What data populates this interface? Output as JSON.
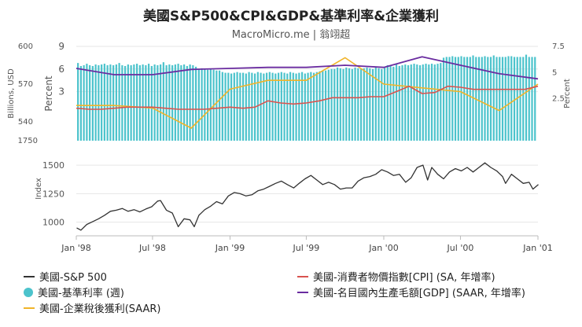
{
  "title": "美國S&P500&CPI&GDP&基準利率&企業獲利",
  "subtitle": "MacroMicro.me | 翁翊超",
  "colors": {
    "sp500": "#333333",
    "fed_rate": "#4cc3cc",
    "profit": "#f0b429",
    "cpi": "#d9534f",
    "gdp": "#6a2ca0",
    "grid": "#e6e6e6"
  },
  "legend": [
    {
      "key": "sp500",
      "label": "美國-S&P 500",
      "marker": "line"
    },
    {
      "key": "cpi",
      "label": "美國-消費者物價指數[CPI] (SA, 年增率)",
      "marker": "line"
    },
    {
      "key": "fed_rate",
      "label": "美國-基準利率 (週)",
      "marker": "dot"
    },
    {
      "key": "gdp",
      "label": "美國-名目國內生產毛額[GDP] (SAAR, 年增率)",
      "marker": "line"
    },
    {
      "key": "profit",
      "label": "美國-企業稅後獲利(SAAR)",
      "marker": "line"
    }
  ],
  "chart_data": [
    {
      "type": "bar+line",
      "panel": "top",
      "y_left_outer": {
        "label": "Billions, USD",
        "range": [
          525,
          600
        ],
        "ticks": [
          "600",
          "570",
          "540"
        ]
      },
      "y_left_inner": {
        "label": "Percent",
        "range": [
          -3.5,
          9
        ],
        "ticks": [
          "9",
          "6",
          "3"
        ],
        "bottom_label": "1750"
      },
      "y_right": {
        "label": "Percent",
        "range": [
          -1.5,
          7.5
        ],
        "ticks": [
          "7.5",
          "5",
          "2.5"
        ]
      },
      "series": [
        {
          "key": "fed_rate",
          "name": "美國-基準利率 (週)",
          "type": "bar",
          "x_start": "1998-01-05",
          "x_step_days": 7,
          "values": [
            6.8,
            6.4,
            6.5,
            6.7,
            6.5,
            6.4,
            6.6,
            6.5,
            6.6,
            6.7,
            6.5,
            6.6,
            6.5,
            6.6,
            6.8,
            6.5,
            6.4,
            6.6,
            6.5,
            6.6,
            6.7,
            6.5,
            6.6,
            6.5,
            6.7,
            6.4,
            6.6,
            6.5,
            6.6,
            6.9,
            6.5,
            6.6,
            6.5,
            6.6,
            6.7,
            6.5,
            6.6,
            6.4,
            6.6,
            6.5,
            6.3,
            6.0,
            6.1,
            6.0,
            5.9,
            6.0,
            5.9,
            5.8,
            5.8,
            5.6,
            5.5,
            5.5,
            5.4,
            5.5,
            5.6,
            5.5,
            5.5,
            5.4,
            5.6,
            5.5,
            5.4,
            5.6,
            5.5,
            5.4,
            5.5,
            5.6,
            5.5,
            5.4,
            5.5,
            5.6,
            5.5,
            5.4,
            5.6,
            5.5,
            5.4,
            5.5,
            5.6,
            5.4,
            5.5,
            5.6,
            5.5,
            5.6,
            5.7,
            5.8,
            5.8,
            5.9,
            6.0,
            6.0,
            6.2,
            6.1,
            6.0,
            6.2,
            6.1,
            6.0,
            6.2,
            6.1,
            6.0,
            6.1,
            6.2,
            6.1,
            6.0,
            6.2,
            6.1,
            6.0,
            6.2,
            6.5,
            6.4,
            6.3,
            6.6,
            6.4,
            6.5,
            6.6,
            6.5,
            6.6,
            6.7,
            6.6,
            6.5,
            6.6,
            6.7,
            6.6,
            6.7,
            6.6,
            6.7,
            6.8,
            7.5,
            7.6,
            7.6,
            7.7,
            7.6,
            7.6,
            7.7,
            7.6,
            7.6,
            7.6,
            7.8,
            7.6,
            7.6,
            7.6,
            7.7,
            7.6,
            7.6,
            7.8,
            7.6,
            7.6,
            7.6,
            7.6,
            7.7,
            7.7,
            7.6,
            7.6,
            7.6,
            7.6,
            7.9,
            7.6,
            7.6,
            7.6
          ]
        },
        {
          "key": "profit",
          "name": "美國-企業稅後獲利(SAAR)",
          "type": "line",
          "axis": "left_outer",
          "x": [
            "1998-01-01",
            "1998-04-01",
            "1998-07-01",
            "1998-10-01",
            "1999-01-01",
            "1999-04-01",
            "1999-07-01",
            "1999-10-01",
            "2000-01-01",
            "2000-04-01",
            "2000-07-01",
            "2000-10-01",
            "2001-01-01"
          ],
          "values": [
            553,
            553,
            551,
            535,
            566,
            573,
            573,
            591,
            570,
            567,
            564,
            549,
            570
          ]
        },
        {
          "key": "cpi",
          "name": "美國-消費者物價指數[CPI] (SA, 年增率)",
          "type": "line",
          "axis": "right",
          "x": [
            "1998-01-01",
            "1998-02-01",
            "1998-03-01",
            "1998-04-01",
            "1998-05-01",
            "1998-06-01",
            "1998-07-01",
            "1998-08-01",
            "1998-09-01",
            "1998-10-01",
            "1998-11-01",
            "1998-12-01",
            "1999-01-01",
            "1999-02-01",
            "1999-03-01",
            "1999-04-01",
            "1999-05-01",
            "1999-06-01",
            "1999-07-01",
            "1999-08-01",
            "1999-09-01",
            "1999-10-01",
            "1999-11-01",
            "1999-12-01",
            "2000-01-01",
            "2000-02-01",
            "2000-03-01",
            "2000-04-01",
            "2000-05-01",
            "2000-06-01",
            "2000-07-01",
            "2000-08-01",
            "2000-09-01",
            "2000-10-01",
            "2000-11-01",
            "2000-12-01",
            "2001-01-01"
          ],
          "values": [
            1.6,
            1.5,
            1.5,
            1.6,
            1.7,
            1.7,
            1.7,
            1.6,
            1.5,
            1.5,
            1.5,
            1.6,
            1.7,
            1.6,
            1.7,
            2.3,
            2.1,
            2.0,
            2.1,
            2.3,
            2.6,
            2.6,
            2.6,
            2.7,
            2.7,
            3.2,
            3.7,
            3.0,
            3.1,
            3.7,
            3.6,
            3.4,
            3.4,
            3.4,
            3.4,
            3.4,
            3.7
          ]
        },
        {
          "key": "gdp",
          "name": "美國-名目國內生產毛額[GDP] (SAAR, 年增率)",
          "type": "line",
          "axis": "right",
          "x": [
            "1998-01-01",
            "1998-04-01",
            "1998-07-01",
            "1998-10-01",
            "1999-01-01",
            "1999-04-01",
            "1999-07-01",
            "1999-10-01",
            "2000-01-01",
            "2000-04-01",
            "2000-07-01",
            "2000-10-01",
            "2001-01-01"
          ],
          "values": [
            5.4,
            4.8,
            4.8,
            5.3,
            5.4,
            5.5,
            5.5,
            5.7,
            5.5,
            6.5,
            5.7,
            4.9,
            4.4
          ]
        }
      ]
    },
    {
      "type": "line",
      "panel": "bottom",
      "y": {
        "label": "Index",
        "range": [
          880,
          1570
        ],
        "ticks": [
          "1500",
          "1250",
          "1000"
        ]
      },
      "x_ticks": [
        "Jan '98",
        "Jul '98",
        "Jan '99",
        "Jul '99",
        "Jan '00",
        "Jul '00",
        "Jan '01"
      ],
      "x_range": [
        "1998-01-01",
        "2001-01-01"
      ],
      "series": [
        {
          "key": "sp500",
          "name": "美國-S&P 500",
          "x": [
            "1998-01-02",
            "1998-01-12",
            "1998-01-26",
            "1998-02-09",
            "1998-02-23",
            "1998-03-09",
            "1998-03-23",
            "1998-04-06",
            "1998-04-20",
            "1998-05-04",
            "1998-05-18",
            "1998-06-01",
            "1998-06-15",
            "1998-06-29",
            "1998-07-13",
            "1998-07-20",
            "1998-08-03",
            "1998-08-17",
            "1998-08-31",
            "1998-09-14",
            "1998-09-28",
            "1998-10-08",
            "1998-10-19",
            "1998-11-02",
            "1998-11-16",
            "1998-11-30",
            "1998-12-14",
            "1998-12-28",
            "1999-01-11",
            "1999-01-25",
            "1999-02-08",
            "1999-02-22",
            "1999-03-08",
            "1999-03-22",
            "1999-04-05",
            "1999-04-19",
            "1999-05-03",
            "1999-05-17",
            "1999-06-01",
            "1999-06-14",
            "1999-06-28",
            "1999-07-12",
            "1999-07-26",
            "1999-08-09",
            "1999-08-23",
            "1999-09-06",
            "1999-09-20",
            "1999-10-04",
            "1999-10-18",
            "1999-11-01",
            "1999-11-15",
            "1999-11-29",
            "1999-12-13",
            "1999-12-27",
            "2000-01-10",
            "2000-01-24",
            "2000-02-07",
            "2000-02-22",
            "2000-03-06",
            "2000-03-20",
            "2000-04-03",
            "2000-04-14",
            "2000-04-24",
            "2000-05-08",
            "2000-05-22",
            "2000-06-05",
            "2000-06-19",
            "2000-07-03",
            "2000-07-17",
            "2000-07-31",
            "2000-08-14",
            "2000-08-28",
            "2000-09-11",
            "2000-09-25",
            "2000-10-09",
            "2000-10-16",
            "2000-10-30",
            "2000-11-13",
            "2000-11-27",
            "2000-12-11",
            "2000-12-20",
            "2001-01-02"
          ],
          "values": [
            950,
            930,
            980,
            1005,
            1030,
            1060,
            1095,
            1105,
            1120,
            1095,
            1110,
            1090,
            1115,
            1135,
            1185,
            1190,
            1105,
            1080,
            960,
            1030,
            1020,
            960,
            1060,
            1110,
            1140,
            1180,
            1160,
            1230,
            1260,
            1250,
            1230,
            1240,
            1275,
            1290,
            1315,
            1340,
            1360,
            1330,
            1300,
            1340,
            1380,
            1410,
            1370,
            1330,
            1350,
            1330,
            1290,
            1300,
            1300,
            1360,
            1390,
            1400,
            1420,
            1460,
            1440,
            1410,
            1420,
            1350,
            1390,
            1480,
            1500,
            1370,
            1480,
            1420,
            1380,
            1440,
            1470,
            1450,
            1480,
            1440,
            1480,
            1520,
            1480,
            1450,
            1400,
            1340,
            1420,
            1380,
            1340,
            1350,
            1290,
            1330
          ]
        }
      ]
    }
  ]
}
